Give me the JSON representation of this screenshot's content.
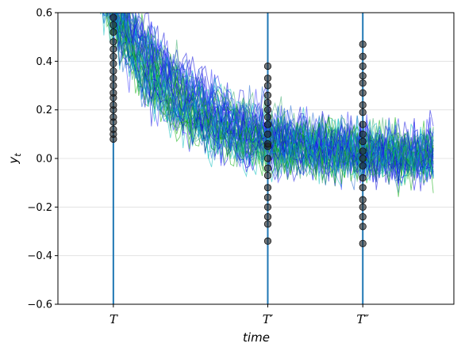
{
  "chart_data": {
    "type": "line",
    "title": "",
    "xlabel": "time",
    "ylabel_main": "y",
    "ylabel_sub": "t",
    "ylim": [
      -0.6,
      0.6
    ],
    "xlim": [
      0,
      100
    ],
    "yticks": [
      -0.6,
      -0.4,
      -0.2,
      0.0,
      0.2,
      0.4,
      0.6
    ],
    "ytick_labels": [
      "−0.6",
      "−0.4",
      "−0.2",
      "0.0",
      "0.2",
      "0.4",
      "0.6"
    ],
    "grid": "horizontal",
    "legend": "none",
    "n_series": 60,
    "series_colors": [
      "#00aa00",
      "#0000dd",
      "#00bbbb",
      "#1560d0",
      "#33aa66",
      "#2c2cff"
    ],
    "mean_curve": {
      "start": 0.95,
      "end": 0.0,
      "decay_rate": 0.055,
      "noise_sd": 0.11
    },
    "vertical_lines": [
      {
        "x": 14,
        "label": "T",
        "color": "#1f77b4"
      },
      {
        "x": 53,
        "label": "T′",
        "color": "#1f77b4"
      },
      {
        "x": 77,
        "label": "T″",
        "color": "#1f77b4"
      }
    ],
    "marker_color": "#222222",
    "samples": [
      {
        "x": 14,
        "values": [
          0.08,
          0.1,
          0.12,
          0.15,
          0.17,
          0.2,
          0.22,
          0.25,
          0.27,
          0.3,
          0.33,
          0.36,
          0.39,
          0.42,
          0.45,
          0.48,
          0.52,
          0.55,
          0.58
        ]
      },
      {
        "x": 53,
        "values": [
          -0.34,
          -0.27,
          -0.24,
          -0.2,
          -0.16,
          -0.12,
          -0.07,
          -0.04,
          0.0,
          0.05,
          0.06,
          0.1,
          0.14,
          0.17,
          0.2,
          0.23,
          0.26,
          0.3,
          0.33,
          0.38
        ]
      },
      {
        "x": 77,
        "values": [
          -0.35,
          -0.28,
          -0.24,
          -0.2,
          -0.17,
          -0.12,
          -0.08,
          -0.03,
          0.0,
          0.03,
          0.07,
          0.1,
          0.14,
          0.19,
          0.22,
          0.27,
          0.31,
          0.34,
          0.38,
          0.42,
          0.47
        ]
      }
    ]
  }
}
